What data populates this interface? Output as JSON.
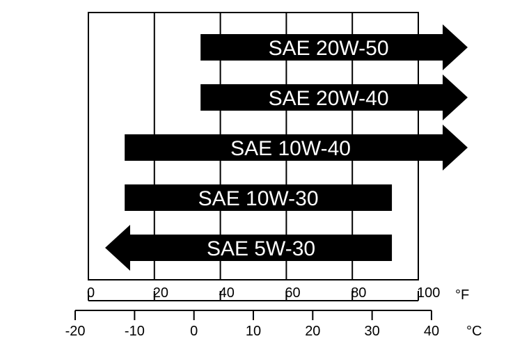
{
  "chart_data": {
    "type": "range-bars",
    "title": "",
    "unit_f": "°F",
    "unit_c": "°C",
    "f_ticks": [
      "0",
      "20",
      "40",
      "60",
      "80",
      "100"
    ],
    "c_ticks": [
      "-20",
      "-10",
      "0",
      "10",
      "20",
      "30",
      "40"
    ],
    "xlim_f": [
      0,
      100
    ],
    "grid": true,
    "series": [
      {
        "name": "SAE 20W-50",
        "min_f": 34,
        "max_f": 100,
        "open_low": false,
        "open_high": true
      },
      {
        "name": "SAE 20W-40",
        "min_f": 34,
        "max_f": 100,
        "open_low": false,
        "open_high": true
      },
      {
        "name": "SAE 10W-40",
        "min_f": 11,
        "max_f": 100,
        "open_low": false,
        "open_high": true
      },
      {
        "name": "SAE 10W-30",
        "min_f": 11,
        "max_f": 92,
        "open_low": false,
        "open_high": false
      },
      {
        "name": "SAE 5W-30",
        "min_f": 0,
        "max_f": 92,
        "open_low": true,
        "open_high": false
      }
    ]
  }
}
